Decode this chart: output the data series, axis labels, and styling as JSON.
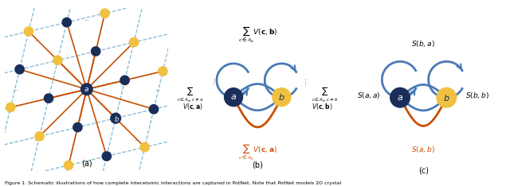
{
  "figure_width": 6.4,
  "figure_height": 2.34,
  "dpi": 100,
  "background_color": "#ffffff",
  "caption": "Figure 1. Schematic illustrations of how complete interatomic interactions are captured in PotNet. Note that PotNet models 2D crystal",
  "panel_labels": [
    "(a)",
    "(b)",
    "(c)"
  ],
  "dark_blue": "#1a2e5a",
  "light_yellow": "#f0c040",
  "orange_color": "#c85000",
  "arrow_blue": "#4a7ab5",
  "dashed_blue": "#6aabcc",
  "v1": [
    2.1,
    0.5
  ],
  "v2": [
    0.5,
    2.1
  ],
  "node_r": 0.38,
  "loop_r": 0.7,
  "lw_arrow": 2.0,
  "fs": 6.5
}
